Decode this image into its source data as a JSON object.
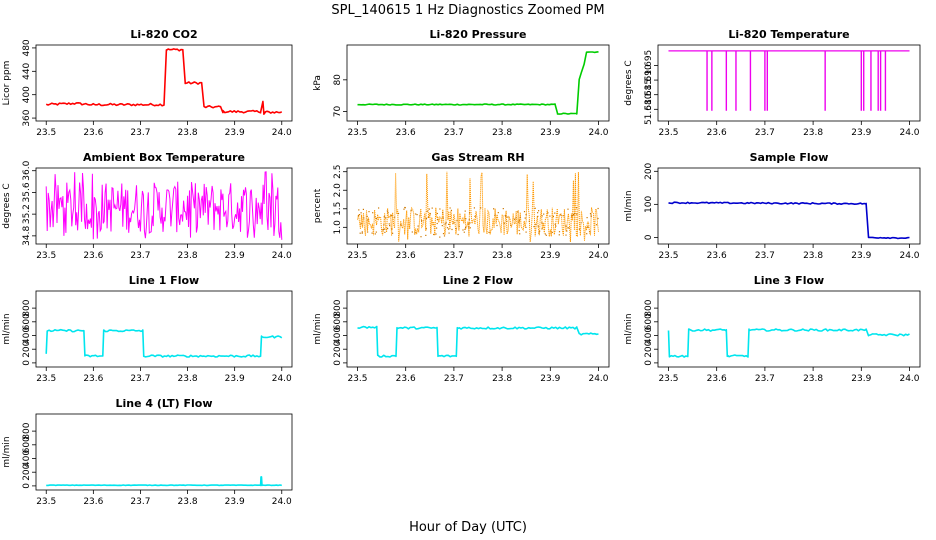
{
  "figure": {
    "title": "SPL_140615  1 Hz Diagnostics Zoomed PM",
    "xlabel": "Hour of Day (UTC)"
  },
  "chart_data": [
    {
      "id": "co2",
      "type": "line",
      "title": "Li-820 CO2",
      "ylabel": "Licor ppm",
      "color": "#ff0000",
      "ylim": [
        355,
        485
      ],
      "yticks": [
        360,
        400,
        440,
        480
      ],
      "xlim": [
        23.5,
        24.0
      ],
      "xticks": [
        23.5,
        23.6,
        23.7,
        23.8,
        23.9,
        24.0
      ],
      "noise": 2,
      "x": [
        23.5,
        23.56,
        23.6,
        23.75,
        23.755,
        23.79,
        23.795,
        23.83,
        23.835,
        23.87,
        23.875,
        23.955,
        23.96,
        23.962,
        23.965,
        24.0
      ],
      "y": [
        383,
        385,
        383,
        383,
        477,
        477,
        420,
        420,
        379,
        379,
        371,
        371,
        388,
        366,
        370,
        370
      ]
    },
    {
      "id": "pressure",
      "type": "line",
      "title": "Li-820 Pressure",
      "ylabel": "kPa",
      "color": "#00cc00",
      "ylim": [
        67,
        91
      ],
      "yticks": [
        70,
        80
      ],
      "xlim": [
        23.5,
        24.0
      ],
      "xticks": [
        23.5,
        23.6,
        23.7,
        23.8,
        23.9,
        24.0
      ],
      "noise": 0.15,
      "x": [
        23.5,
        23.91,
        23.915,
        23.955,
        23.96,
        23.97,
        23.975,
        24.0
      ],
      "y": [
        72.2,
        72.2,
        69.3,
        69.3,
        80,
        85,
        88.8,
        88.8
      ]
    },
    {
      "id": "temperature",
      "type": "line",
      "title": "Li-820 Temperature",
      "ylabel": "degrees C",
      "color": "#ee00ee",
      "ylim": [
        51.676,
        51.702
      ],
      "yticks": [
        51.68,
        51.685,
        51.69,
        51.695
      ],
      "xlim": [
        23.5,
        24.0
      ],
      "xticks": [
        23.5,
        23.6,
        23.7,
        23.8,
        23.9,
        24.0
      ],
      "noise": 0,
      "baseline": 51.7,
      "drops": [
        23.58,
        23.59,
        23.62,
        23.64,
        23.67,
        23.7,
        23.705,
        23.825,
        23.9,
        23.905,
        23.92,
        23.935,
        23.94,
        23.95
      ],
      "drop_to": 51.6795
    },
    {
      "id": "box_temp",
      "type": "line",
      "title": "Ambient Box Temperature",
      "ylabel": "degrees C",
      "color": "#ff00ff",
      "ylim": [
        34.65,
        36.05
      ],
      "yticks": [
        34.8,
        35.2,
        35.6,
        36.0
      ],
      "xlim": [
        23.5,
        24.0
      ],
      "xticks": [
        23.5,
        23.6,
        23.7,
        23.8,
        23.9,
        24.0
      ],
      "dense": {
        "center": 35.25,
        "low": 34.85,
        "high": 35.8,
        "spike_low": 34.72,
        "spike_high": 35.98
      }
    },
    {
      "id": "rh",
      "type": "scatter",
      "title": "Gas Stream RH",
      "ylabel": "percent",
      "color": "#ff9900",
      "ylim": [
        0.55,
        2.6
      ],
      "yticks": [
        1.0,
        1.5,
        2.0,
        2.5
      ],
      "xlim": [
        23.5,
        24.0
      ],
      "xticks": [
        23.5,
        23.6,
        23.7,
        23.8,
        23.9,
        24.0
      ],
      "dense": {
        "center": 1.15,
        "low": 0.75,
        "high": 1.55,
        "spike_low": 0.6,
        "spike_high": 2.5
      }
    },
    {
      "id": "sample_flow",
      "type": "line",
      "title": "Sample Flow",
      "ylabel": "ml/min",
      "color": "#0000cc",
      "ylim": [
        -20,
        210
      ],
      "yticks": [
        0,
        100,
        200
      ],
      "xlim": [
        23.5,
        24.0
      ],
      "xticks": [
        23.5,
        23.6,
        23.7,
        23.8,
        23.9,
        24.0
      ],
      "noise": 2,
      "x": [
        23.5,
        23.91,
        23.915,
        24.0
      ],
      "y": [
        105,
        102,
        0,
        -2
      ]
    },
    {
      "id": "line1",
      "type": "line",
      "title": "Line 1 Flow",
      "ylabel": "ml/min",
      "color": "#00e5ee",
      "ylim": [
        -60,
        1050
      ],
      "yticks": [
        0,
        200,
        400,
        600,
        800
      ],
      "xlim": [
        23.5,
        24.0
      ],
      "xticks": [
        23.5,
        23.6,
        23.7,
        23.8,
        23.9,
        24.0
      ],
      "noise": 15,
      "x": [
        23.5,
        23.502,
        23.58,
        23.582,
        23.62,
        23.622,
        23.705,
        23.707,
        23.955,
        23.957,
        24.0
      ],
      "y": [
        120,
        470,
        470,
        100,
        100,
        470,
        470,
        100,
        100,
        380,
        380
      ]
    },
    {
      "id": "line2",
      "type": "line",
      "title": "Line 2 Flow",
      "ylabel": "ml/min",
      "color": "#00e5ee",
      "ylim": [
        -60,
        1050
      ],
      "yticks": [
        0,
        200,
        400,
        600,
        800
      ],
      "xlim": [
        23.5,
        24.0
      ],
      "xticks": [
        23.5,
        23.6,
        23.7,
        23.8,
        23.9,
        24.0
      ],
      "noise": 15,
      "x": [
        23.5,
        23.54,
        23.542,
        23.58,
        23.582,
        23.665,
        23.667,
        23.705,
        23.707,
        23.955,
        23.96,
        24.0
      ],
      "y": [
        520,
        520,
        100,
        100,
        510,
        510,
        100,
        100,
        510,
        510,
        420,
        420
      ]
    },
    {
      "id": "line3",
      "type": "line",
      "title": "Line 3 Flow",
      "ylabel": "ml/min",
      "color": "#00e5ee",
      "ylim": [
        -60,
        1050
      ],
      "yticks": [
        0,
        200,
        400,
        600,
        800
      ],
      "xlim": [
        23.5,
        24.0
      ],
      "xticks": [
        23.5,
        23.6,
        23.7,
        23.8,
        23.9,
        24.0
      ],
      "noise": 15,
      "x": [
        23.5,
        23.502,
        23.54,
        23.542,
        23.62,
        23.622,
        23.665,
        23.667,
        23.91,
        23.915,
        24.0
      ],
      "y": [
        480,
        100,
        100,
        480,
        480,
        100,
        100,
        480,
        480,
        410,
        410
      ]
    },
    {
      "id": "line4",
      "type": "line",
      "title": "Line 4 (LT) Flow",
      "ylabel": "ml/min",
      "color": "#00e5ee",
      "ylim": [
        -60,
        1050
      ],
      "yticks": [
        0,
        200,
        400,
        600,
        800
      ],
      "xlim": [
        23.5,
        24.0
      ],
      "xticks": [
        23.5,
        23.6,
        23.7,
        23.8,
        23.9,
        24.0
      ],
      "noise": 3,
      "x": [
        23.5,
        23.955,
        23.956,
        23.957,
        23.958,
        24.0
      ],
      "y": [
        10,
        10,
        130,
        130,
        10,
        10
      ]
    }
  ]
}
